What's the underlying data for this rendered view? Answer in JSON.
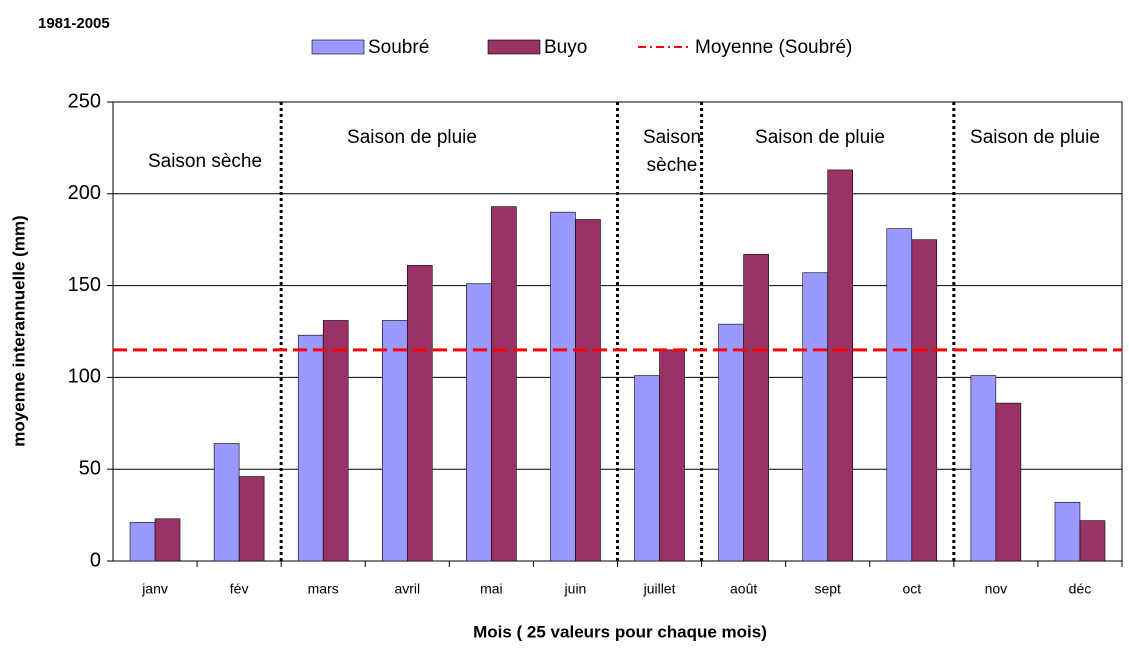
{
  "chart_data": {
    "type": "bar",
    "title": "1981-2005",
    "ylabel": "moyenne interannuelle (mm)",
    "xlabel": "Mois ( 25 valeurs pour chaque mois)",
    "categories": [
      "janv",
      "fév",
      "mars",
      "avril",
      "mai",
      "juin",
      "juillet",
      "août",
      "sept",
      "oct",
      "nov",
      "déc"
    ],
    "series": [
      {
        "name": "Soubré",
        "color": "#9999ff",
        "values": [
          21,
          64,
          123,
          131,
          151,
          190,
          101,
          129,
          157,
          181,
          101,
          32
        ]
      },
      {
        "name": "Buyo",
        "color": "#993366",
        "values": [
          23,
          46,
          131,
          161,
          193,
          186,
          115,
          167,
          213,
          175,
          86,
          22
        ]
      }
    ],
    "mean_line": {
      "name": "Moyenne (Soubré)",
      "color": "#ff0000",
      "value": 115
    },
    "annotations": [
      "Saison sèche",
      "Saison de pluie",
      "Saison",
      "sèche",
      "Saison de pluie",
      "Saison  de pluie"
    ],
    "ylim": [
      0,
      250
    ],
    "yticks": [
      0,
      50,
      100,
      150,
      200,
      250
    ],
    "grid": true
  }
}
